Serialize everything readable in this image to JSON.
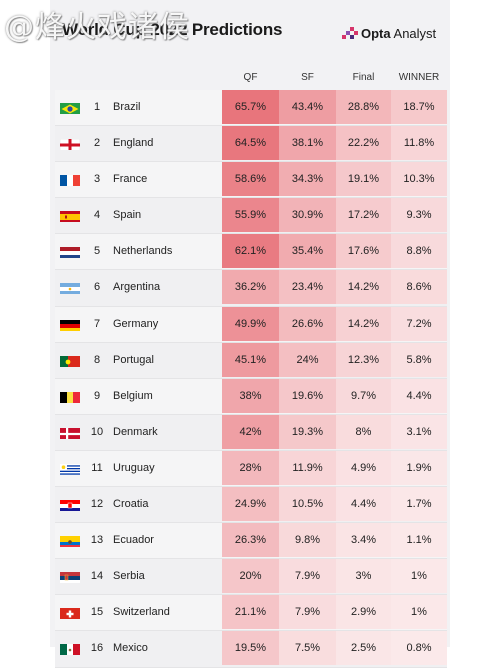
{
  "header": {
    "title": "World Cup 2022 Predictions",
    "brand": "Opta Analyst",
    "brand_bold": "Opta",
    "brand_rest": " Analyst",
    "watermark": "@烽火戏诸侯"
  },
  "chart_data": {
    "type": "table",
    "title": "World Cup 2022 Predictions",
    "columns": [
      "QF",
      "SF",
      "Final",
      "WINNER"
    ],
    "rows": [
      {
        "rank": "1",
        "team": "Brazil",
        "flag": "brazil-flag-icon",
        "QF": "65.7%",
        "SF": "43.4%",
        "Final": "28.8%",
        "WINNER": "18.7%"
      },
      {
        "rank": "2",
        "team": "England",
        "flag": "england-flag-icon",
        "QF": "64.5%",
        "SF": "38.1%",
        "Final": "22.2%",
        "WINNER": "11.8%"
      },
      {
        "rank": "3",
        "team": "France",
        "flag": "france-flag-icon",
        "QF": "58.6%",
        "SF": "34.3%",
        "Final": "19.1%",
        "WINNER": "10.3%"
      },
      {
        "rank": "4",
        "team": "Spain",
        "flag": "spain-flag-icon",
        "QF": "55.9%",
        "SF": "30.9%",
        "Final": "17.2%",
        "WINNER": "9.3%"
      },
      {
        "rank": "5",
        "team": "Netherlands",
        "flag": "netherlands-flag-icon",
        "QF": "62.1%",
        "SF": "35.4%",
        "Final": "17.6%",
        "WINNER": "8.8%"
      },
      {
        "rank": "6",
        "team": "Argentina",
        "flag": "argentina-flag-icon",
        "QF": "36.2%",
        "SF": "23.4%",
        "Final": "14.2%",
        "WINNER": "8.6%"
      },
      {
        "rank": "7",
        "team": "Germany",
        "flag": "germany-flag-icon",
        "QF": "49.9%",
        "SF": "26.6%",
        "Final": "14.2%",
        "WINNER": "7.2%"
      },
      {
        "rank": "8",
        "team": "Portugal",
        "flag": "portugal-flag-icon",
        "QF": "45.1%",
        "SF": "24%",
        "Final": "12.3%",
        "WINNER": "5.8%"
      },
      {
        "rank": "9",
        "team": "Belgium",
        "flag": "belgium-flag-icon",
        "QF": "38%",
        "SF": "19.6%",
        "Final": "9.7%",
        "WINNER": "4.4%"
      },
      {
        "rank": "10",
        "team": "Denmark",
        "flag": "denmark-flag-icon",
        "QF": "42%",
        "SF": "19.3%",
        "Final": "8%",
        "WINNER": "3.1%"
      },
      {
        "rank": "11",
        "team": "Uruguay",
        "flag": "uruguay-flag-icon",
        "QF": "28%",
        "SF": "11.9%",
        "Final": "4.9%",
        "WINNER": "1.9%"
      },
      {
        "rank": "12",
        "team": "Croatia",
        "flag": "croatia-flag-icon",
        "QF": "24.9%",
        "SF": "10.5%",
        "Final": "4.4%",
        "WINNER": "1.7%"
      },
      {
        "rank": "13",
        "team": "Ecuador",
        "flag": "ecuador-flag-icon",
        "QF": "26.3%",
        "SF": "9.8%",
        "Final": "3.4%",
        "WINNER": "1.1%"
      },
      {
        "rank": "14",
        "team": "Serbia",
        "flag": "serbia-flag-icon",
        "QF": "20%",
        "SF": "7.9%",
        "Final": "3%",
        "WINNER": "1%"
      },
      {
        "rank": "15",
        "team": "Switzerland",
        "flag": "switzerland-flag-icon",
        "QF": "21.1%",
        "SF": "7.9%",
        "Final": "2.9%",
        "WINNER": "1%"
      },
      {
        "rank": "16",
        "team": "Mexico",
        "flag": "mexico-flag-icon",
        "QF": "19.5%",
        "SF": "7.5%",
        "Final": "2.5%",
        "WINNER": "0.8%"
      }
    ]
  },
  "colors": {
    "heat_high": "#e8757c",
    "heat_low": "#fbeaeb",
    "panel": "#f2f2f4",
    "brand_accent": "#d6356b"
  }
}
